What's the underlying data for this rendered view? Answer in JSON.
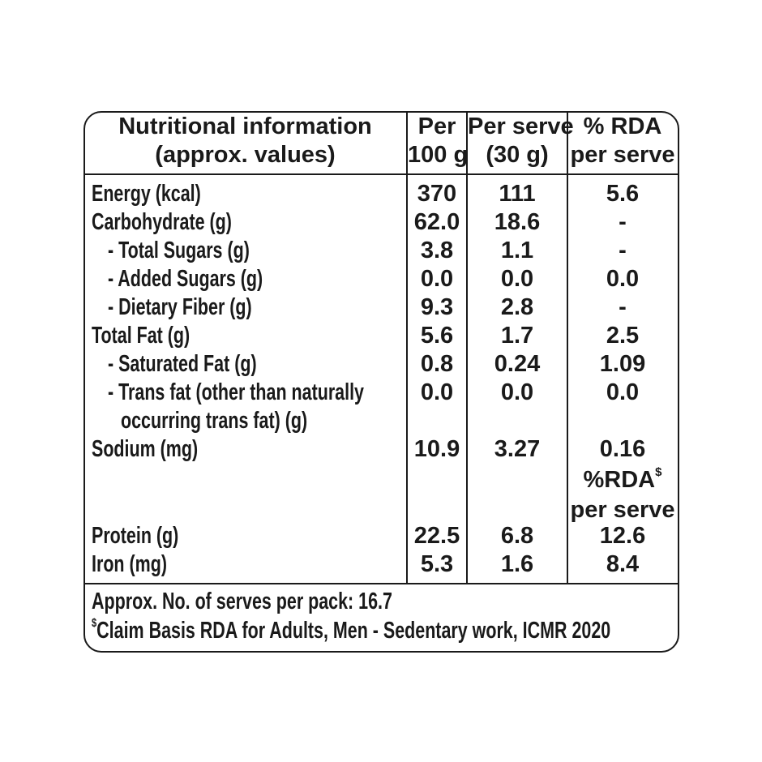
{
  "header": {
    "col1": [
      "Nutritional information",
      "(approx. values)"
    ],
    "col2": [
      "Per",
      "100 g"
    ],
    "col3": [
      "Per serve",
      "(30 g)"
    ],
    "col4": [
      "% RDA",
      "per serve"
    ]
  },
  "rows": [
    {
      "label": "Energy (kcal)",
      "indent": false,
      "per100": "370",
      "serve": "111",
      "rda": "5.6"
    },
    {
      "label": "Carbohydrate (g)",
      "indent": false,
      "per100": "62.0",
      "serve": "18.6",
      "rda": "-"
    },
    {
      "label": "- Total Sugars (g)",
      "indent": true,
      "per100": "3.8",
      "serve": "1.1",
      "rda": "-"
    },
    {
      "label": "- Added Sugars (g)",
      "indent": true,
      "per100": "0.0",
      "serve": "0.0",
      "rda": "0.0"
    },
    {
      "label": "- Dietary Fiber (g)",
      "indent": true,
      "per100": "9.3",
      "serve": "2.8",
      "rda": "-"
    },
    {
      "label": "Total Fat (g)",
      "indent": false,
      "per100": "5.6",
      "serve": "1.7",
      "rda": "2.5"
    },
    {
      "label": "- Saturated Fat (g)",
      "indent": true,
      "per100": "0.8",
      "serve": "0.24",
      "rda": "1.09"
    },
    {
      "label": "- Trans fat (other than naturally",
      "label2": "occurring trans fat) (g)",
      "indent": true,
      "per100": "0.0",
      "serve": "0.0",
      "rda": "0.0"
    },
    {
      "label": "Sodium (mg)",
      "indent": false,
      "per100": "10.9",
      "serve": "3.27",
      "rda": "0.16"
    },
    {
      "label": "Protein (g)",
      "indent": false,
      "per100": "22.5",
      "serve": "6.8",
      "rda": "12.6"
    },
    {
      "label": "Iron (mg)",
      "indent": false,
      "per100": "5.3",
      "serve": "1.6",
      "rda": "8.4"
    }
  ],
  "rda_subheader": {
    "text": "%RDA",
    "mark": "$",
    "line2": "per serve"
  },
  "footer": {
    "serves": "Approx. No. of serves per pack: 16.7",
    "claim_mark": "$",
    "claim": "Claim Basis RDA for Adults, Men - Sedentary work, ICMR 2020"
  }
}
